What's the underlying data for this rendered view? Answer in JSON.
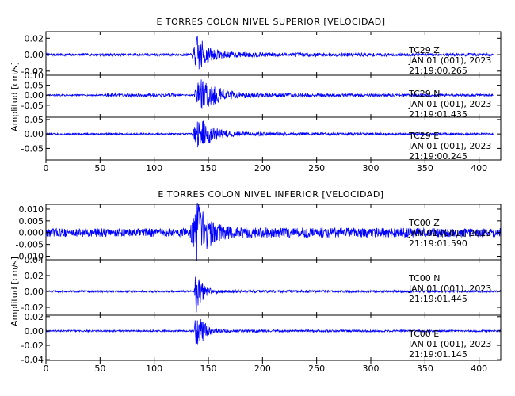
{
  "colors": {
    "trace": "#0000ff",
    "frame": "#000000",
    "background": "#ffffff"
  },
  "chart_data": [
    {
      "type": "line",
      "title": "E TORRES COLON NIVEL SUPERIOR [VELOCIDAD]",
      "xlabel": "",
      "ylabel": "Amplitud [cm/s]",
      "xlim": [
        0,
        420
      ],
      "x_ticks": [
        "0",
        "50",
        "100",
        "150",
        "200",
        "250",
        "300",
        "350",
        "400"
      ],
      "x_tick_values": [
        0,
        50,
        100,
        150,
        200,
        250,
        300,
        350,
        400
      ],
      "grid": false,
      "series": [
        {
          "name": "TC29 Z",
          "station": "TC29",
          "component": "Z",
          "date": "JAN 01 (001), 2023",
          "time": "21:19:00.265",
          "ylim": [
            -0.025,
            0.028
          ],
          "y_ticks": [
            "0.02",
            "0.00",
            "-0.02"
          ],
          "y_tick_values": [
            0.02,
            0.0,
            -0.02
          ],
          "signal": {
            "duration": 413,
            "onset": 135,
            "peak_time": 140,
            "peak": 0.022,
            "noise": 0.0015,
            "decay": 9,
            "coda": 0.002,
            "coda_decay": 120
          }
        },
        {
          "name": "TC29 N",
          "station": "TC29",
          "component": "N",
          "date": "JAN 01 (001), 2023",
          "time": "21:19:01.435",
          "ylim": [
            -0.11,
            0.1
          ],
          "y_ticks": [
            "0.10",
            "0.05",
            "0.00",
            "-0.05"
          ],
          "y_tick_values": [
            0.1,
            0.05,
            0.0,
            -0.05
          ],
          "signal": {
            "duration": 413,
            "onset": 137,
            "peak_time": 142,
            "peak": 0.09,
            "noise": 0.004,
            "decay": 14,
            "coda": 0.01,
            "coda_decay": 150,
            "burst": [
              55,
              120,
              0.012
            ]
          }
        },
        {
          "name": "TC29 E",
          "station": "TC29",
          "component": "E",
          "date": "JAN 01 (001), 2023",
          "time": "21:19:00.245",
          "ylim": [
            -0.09,
            0.058
          ],
          "y_ticks": [
            "0.05",
            "0.00",
            "-0.05"
          ],
          "y_tick_values": [
            0.05,
            0.0,
            -0.05
          ],
          "signal": {
            "duration": 413,
            "onset": 135,
            "peak_time": 141,
            "peak": 0.055,
            "noise": 0.003,
            "decay": 12,
            "coda": 0.005,
            "coda_decay": 120
          }
        }
      ]
    },
    {
      "type": "line",
      "title": "E TORRES COLON NIVEL INFERIOR [VELOCIDAD]",
      "xlabel": "",
      "ylabel": "Amplitud [cm/s]",
      "xlim": [
        0,
        420
      ],
      "x_ticks": [
        "0",
        "50",
        "100",
        "150",
        "200",
        "250",
        "300",
        "350",
        "400"
      ],
      "x_tick_values": [
        0,
        50,
        100,
        150,
        200,
        250,
        300,
        350,
        400
      ],
      "grid": false,
      "series": [
        {
          "name": "TC00 Z",
          "station": "TC00",
          "component": "Z",
          "date": "JAN 01 (001), 2023",
          "time": "21:19:01.590",
          "ylim": [
            -0.0115,
            0.012
          ],
          "y_ticks": [
            "0.010",
            "0.005",
            "0.000",
            "-0.005",
            "-0.010"
          ],
          "y_tick_values": [
            0.01,
            0.005,
            0.0,
            -0.005,
            -0.01
          ],
          "signal": {
            "duration": 420,
            "onset": 133,
            "peak_time": 140,
            "peak": 0.011,
            "noise": 0.0018,
            "decay": 10,
            "coda": 0.0005,
            "coda_decay": 200
          }
        },
        {
          "name": "TC00 N",
          "station": "TC00",
          "component": "N",
          "date": "JAN 01 (001), 2023",
          "time": "21:19:01.445",
          "ylim": [
            -0.03,
            0.04
          ],
          "y_ticks": [
            "0.04",
            "0.02",
            "0.00",
            "-0.02"
          ],
          "y_tick_values": [
            0.04,
            0.02,
            0.0,
            -0.02
          ],
          "signal": {
            "duration": 420,
            "onset": 137,
            "peak_time": 139,
            "peak": 0.03,
            "noise": 0.0012,
            "decay": 5,
            "coda": 0.001,
            "coda_decay": 100
          }
        },
        {
          "name": "TC00 E",
          "station": "TC00",
          "component": "E",
          "date": "JAN 01 (001), 2023",
          "time": "21:19:01.145",
          "ylim": [
            -0.041,
            0.022
          ],
          "y_ticks": [
            "0.02",
            "0.00",
            "-0.02",
            "-0.04"
          ],
          "y_tick_values": [
            0.02,
            0.0,
            -0.02,
            -0.04
          ],
          "signal": {
            "duration": 420,
            "onset": 137,
            "peak_time": 139,
            "peak": 0.035,
            "noise": 0.0012,
            "decay": 6,
            "coda": 0.001,
            "coda_decay": 100
          }
        }
      ]
    }
  ]
}
